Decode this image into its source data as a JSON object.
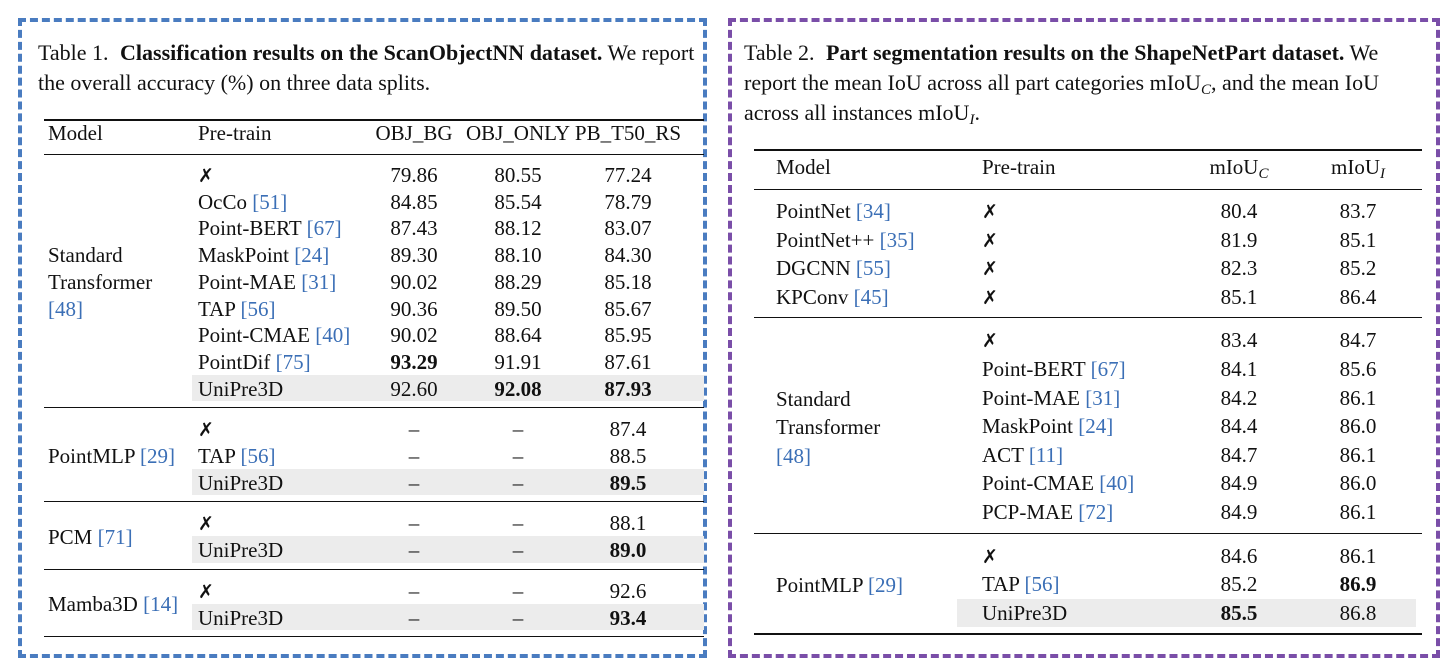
{
  "table1": {
    "caption_lead": "Table 1.",
    "caption_bold": "Classification results on the ScanObjectNN dataset.",
    "caption_rest": "We report the overall accuracy (%) on three data splits.",
    "headers": [
      "Model",
      "Pre-train",
      "OBJ_BG",
      "OBJ_ONLY",
      "PB_T50_RS"
    ],
    "groups": [
      {
        "model_lines": [
          "Standard",
          "Transformer"
        ],
        "model_ref": "[48]",
        "rows": [
          {
            "pretrain": "✗",
            "ref": "",
            "v": [
              "79.86",
              "80.55",
              "77.24"
            ],
            "bold": [
              false,
              false,
              false
            ],
            "shaded": false
          },
          {
            "pretrain": "OcCo ",
            "ref": "[51]",
            "v": [
              "84.85",
              "85.54",
              "78.79"
            ],
            "bold": [
              false,
              false,
              false
            ],
            "shaded": false
          },
          {
            "pretrain": "Point-BERT ",
            "ref": "[67]",
            "v": [
              "87.43",
              "88.12",
              "83.07"
            ],
            "bold": [
              false,
              false,
              false
            ],
            "shaded": false
          },
          {
            "pretrain": "MaskPoint ",
            "ref": "[24]",
            "v": [
              "89.30",
              "88.10",
              "84.30"
            ],
            "bold": [
              false,
              false,
              false
            ],
            "shaded": false
          },
          {
            "pretrain": "Point-MAE ",
            "ref": "[31]",
            "v": [
              "90.02",
              "88.29",
              "85.18"
            ],
            "bold": [
              false,
              false,
              false
            ],
            "shaded": false
          },
          {
            "pretrain": "TAP ",
            "ref": "[56]",
            "v": [
              "90.36",
              "89.50",
              "85.67"
            ],
            "bold": [
              false,
              false,
              false
            ],
            "shaded": false
          },
          {
            "pretrain": "Point-CMAE ",
            "ref": "[40]",
            "v": [
              "90.02",
              "88.64",
              "85.95"
            ],
            "bold": [
              false,
              false,
              false
            ],
            "shaded": false
          },
          {
            "pretrain": "PointDif ",
            "ref": "[75]",
            "v": [
              "93.29",
              "91.91",
              "87.61"
            ],
            "bold": [
              true,
              false,
              false
            ],
            "shaded": false
          },
          {
            "pretrain": "UniPre3D",
            "ref": "",
            "v": [
              "92.60",
              "92.08",
              "87.93"
            ],
            "bold": [
              false,
              true,
              true
            ],
            "shaded": true
          }
        ]
      },
      {
        "model_lines": [
          "PointMLP "
        ],
        "model_ref": "[29]",
        "rows": [
          {
            "pretrain": "✗",
            "ref": "",
            "v": [
              "–",
              "–",
              "87.4"
            ],
            "bold": [
              false,
              false,
              false
            ],
            "shaded": false
          },
          {
            "pretrain": "TAP ",
            "ref": "[56]",
            "v": [
              "–",
              "–",
              "88.5"
            ],
            "bold": [
              false,
              false,
              false
            ],
            "shaded": false
          },
          {
            "pretrain": "UniPre3D",
            "ref": "",
            "v": [
              "–",
              "–",
              "89.5"
            ],
            "bold": [
              false,
              false,
              true
            ],
            "shaded": true
          }
        ]
      },
      {
        "model_lines": [
          "PCM "
        ],
        "model_ref": "[71]",
        "rows": [
          {
            "pretrain": "✗",
            "ref": "",
            "v": [
              "–",
              "–",
              "88.1"
            ],
            "bold": [
              false,
              false,
              false
            ],
            "shaded": false
          },
          {
            "pretrain": "UniPre3D",
            "ref": "",
            "v": [
              "–",
              "–",
              "89.0"
            ],
            "bold": [
              false,
              false,
              true
            ],
            "shaded": true
          }
        ]
      },
      {
        "model_lines": [
          "Mamba3D "
        ],
        "model_ref": "[14]",
        "rows": [
          {
            "pretrain": "✗",
            "ref": "",
            "v": [
              "–",
              "–",
              "92.6"
            ],
            "bold": [
              false,
              false,
              false
            ],
            "shaded": false
          },
          {
            "pretrain": "UniPre3D",
            "ref": "",
            "v": [
              "–",
              "–",
              "93.4"
            ],
            "bold": [
              false,
              false,
              true
            ],
            "shaded": true
          }
        ]
      }
    ]
  },
  "table2": {
    "caption_lead": "Table 2.",
    "caption_bold": "Part segmentation results on the ShapeNetPart dataset.",
    "caption_rest_1": "We report the mean IoU across all part categories mIoU",
    "caption_sub_c": "C",
    "caption_rest_2": ", and the mean IoU across all instances mIoU",
    "caption_sub_i": "I",
    "caption_end": ".",
    "headers": [
      "Model",
      "Pre-train",
      "mIoU",
      "mIoU"
    ],
    "header_subs": [
      "C",
      "I"
    ],
    "groups": [
      {
        "per_row_model": true,
        "rows": [
          {
            "model": "PointNet ",
            "model_ref": "[34]",
            "pretrain": "✗",
            "ref": "",
            "v": [
              "80.4",
              "83.7"
            ],
            "bold": [
              false,
              false
            ],
            "shaded": false
          },
          {
            "model": "PointNet++ ",
            "model_ref": "[35]",
            "pretrain": "✗",
            "ref": "",
            "v": [
              "81.9",
              "85.1"
            ],
            "bold": [
              false,
              false
            ],
            "shaded": false
          },
          {
            "model": "DGCNN ",
            "model_ref": "[55]",
            "pretrain": "✗",
            "ref": "",
            "v": [
              "82.3",
              "85.2"
            ],
            "bold": [
              false,
              false
            ],
            "shaded": false
          },
          {
            "model": "KPConv ",
            "model_ref": "[45]",
            "pretrain": "✗",
            "ref": "",
            "v": [
              "85.1",
              "86.4"
            ],
            "bold": [
              false,
              false
            ],
            "shaded": false
          }
        ]
      },
      {
        "per_row_model": false,
        "model_lines": [
          "Standard",
          "Transformer"
        ],
        "model_ref": "[48]",
        "rows": [
          {
            "pretrain": "✗",
            "ref": "",
            "v": [
              "83.4",
              "84.7"
            ],
            "bold": [
              false,
              false
            ],
            "shaded": false
          },
          {
            "pretrain": "Point-BERT ",
            "ref": "[67]",
            "v": [
              "84.1",
              "85.6"
            ],
            "bold": [
              false,
              false
            ],
            "shaded": false
          },
          {
            "pretrain": "Point-MAE ",
            "ref": "[31]",
            "v": [
              "84.2",
              "86.1"
            ],
            "bold": [
              false,
              false
            ],
            "shaded": false
          },
          {
            "pretrain": "MaskPoint ",
            "ref": "[24]",
            "v": [
              "84.4",
              "86.0"
            ],
            "bold": [
              false,
              false
            ],
            "shaded": false
          },
          {
            "pretrain": "ACT ",
            "ref": "[11]",
            "v": [
              "84.7",
              "86.1"
            ],
            "bold": [
              false,
              false
            ],
            "shaded": false
          },
          {
            "pretrain": "Point-CMAE ",
            "ref": "[40]",
            "v": [
              "84.9",
              "86.0"
            ],
            "bold": [
              false,
              false
            ],
            "shaded": false
          },
          {
            "pretrain": "PCP-MAE ",
            "ref": "[72]",
            "v": [
              "84.9",
              "86.1"
            ],
            "bold": [
              false,
              false
            ],
            "shaded": false
          }
        ]
      },
      {
        "per_row_model": false,
        "model_lines": [
          "PointMLP "
        ],
        "model_ref": "[29]",
        "rows": [
          {
            "pretrain": "✗",
            "ref": "",
            "v": [
              "84.6",
              "86.1"
            ],
            "bold": [
              false,
              false
            ],
            "shaded": false
          },
          {
            "pretrain": "TAP ",
            "ref": "[56]",
            "v": [
              "85.2",
              "86.9"
            ],
            "bold": [
              false,
              true
            ],
            "shaded": false
          },
          {
            "pretrain": "UniPre3D",
            "ref": "",
            "v": [
              "85.5",
              "86.8"
            ],
            "bold": [
              true,
              false
            ],
            "shaded": true
          }
        ]
      }
    ]
  }
}
